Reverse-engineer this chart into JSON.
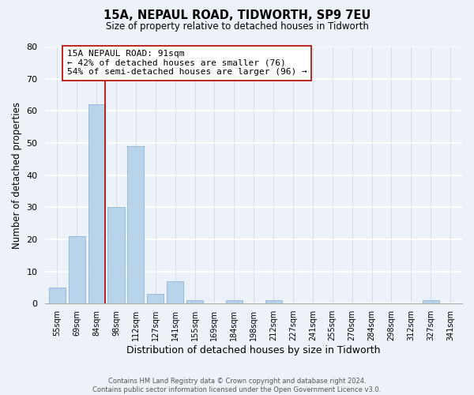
{
  "title": "15A, NEPAUL ROAD, TIDWORTH, SP9 7EU",
  "subtitle": "Size of property relative to detached houses in Tidworth",
  "xlabel": "Distribution of detached houses by size in Tidworth",
  "ylabel": "Number of detached properties",
  "bin_labels": [
    "55sqm",
    "69sqm",
    "84sqm",
    "98sqm",
    "112sqm",
    "127sqm",
    "141sqm",
    "155sqm",
    "169sqm",
    "184sqm",
    "198sqm",
    "212sqm",
    "227sqm",
    "241sqm",
    "255sqm",
    "270sqm",
    "284sqm",
    "298sqm",
    "312sqm",
    "327sqm",
    "341sqm"
  ],
  "bar_values": [
    5,
    21,
    62,
    30,
    49,
    3,
    7,
    1,
    0,
    1,
    0,
    1,
    0,
    0,
    0,
    0,
    0,
    0,
    0,
    1,
    0
  ],
  "bar_color": "#b8d4ea",
  "bar_edge_color": "#8ab4d4",
  "vline_x_index": 2,
  "vline_color": "#bb0000",
  "annotation_text": "15A NEPAUL ROAD: 91sqm\n← 42% of detached houses are smaller (76)\n54% of semi-detached houses are larger (96) →",
  "annotation_box_color": "#ffffff",
  "annotation_box_edge_color": "#bb0000",
  "ylim": [
    0,
    80
  ],
  "yticks": [
    0,
    10,
    20,
    30,
    40,
    50,
    60,
    70,
    80
  ],
  "background_color": "#edf2f8",
  "grid_color": "#d0d8e4",
  "footer_line1": "Contains HM Land Registry data © Crown copyright and database right 2024.",
  "footer_line2": "Contains public sector information licensed under the Open Government Licence v3.0."
}
